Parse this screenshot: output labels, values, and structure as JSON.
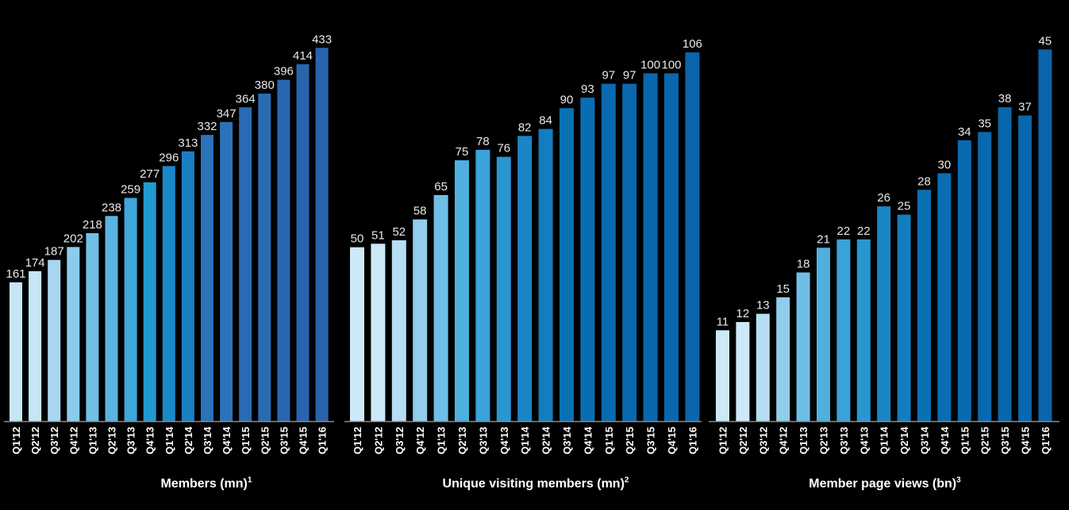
{
  "chart_data": [
    {
      "type": "bar",
      "title": "Members (mn)",
      "footnote": "1",
      "categories": [
        "Q1'12",
        "Q2'12",
        "Q3'12",
        "Q4'12",
        "Q1'13",
        "Q2'13",
        "Q3'13",
        "Q4'13",
        "Q1'14",
        "Q2'14",
        "Q3'14",
        "Q4'14",
        "Q1'15",
        "Q2'15",
        "Q3'15",
        "Q4'15",
        "Q1'16"
      ],
      "values": [
        161,
        174,
        187,
        202,
        218,
        238,
        259,
        277,
        296,
        313,
        332,
        347,
        364,
        380,
        396,
        414,
        433
      ],
      "ylim": [
        0,
        460
      ],
      "colors": [
        "#c6e6f6",
        "#c6e6f6",
        "#a9d7ef",
        "#8ccbeb",
        "#71bfe6",
        "#5ab4e0",
        "#3fa6da",
        "#2298d1",
        "#1a88c8",
        "#1a7fc2",
        "#2a72b9",
        "#2a72b9",
        "#2a6cb4",
        "#2a6ab3",
        "#2b66b0",
        "#2b64ae",
        "#2b62ad"
      ]
    },
    {
      "type": "bar",
      "title": "Unique visiting members (mn)",
      "footnote": "2",
      "categories": [
        "Q1'12",
        "Q2'12",
        "Q3'12",
        "Q4'12",
        "Q1'13",
        "Q2'13",
        "Q3'13",
        "Q4'13",
        "Q1'14",
        "Q2'14",
        "Q3'14",
        "Q4'14",
        "Q1'15",
        "Q2'15",
        "Q3'15",
        "Q4'15",
        "Q1'16"
      ],
      "values": [
        50,
        51,
        52,
        58,
        65,
        75,
        78,
        76,
        82,
        84,
        90,
        93,
        97,
        97,
        100,
        100,
        106
      ],
      "ylim": [
        0,
        114
      ],
      "colors": [
        "#cde9f7",
        "#cde9f7",
        "#b5def2",
        "#92cdeb",
        "#6fbee6",
        "#4fb0df",
        "#3aa3d9",
        "#2a96d0",
        "#1a86c6",
        "#137dbf",
        "#0a70b4",
        "#0a6db2",
        "#0a6ab0",
        "#0a68ae",
        "#0a66ad",
        "#0a66ad",
        "#0a65ac"
      ]
    },
    {
      "type": "bar",
      "title": "Member page views (bn)",
      "footnote": "3",
      "categories": [
        "Q1'12",
        "Q2'12",
        "Q3'12",
        "Q4'12",
        "Q1'13",
        "Q2'13",
        "Q3'13",
        "Q4'13",
        "Q1'14",
        "Q2'14",
        "Q3'14",
        "Q4'14",
        "Q1'15",
        "Q2'15",
        "Q3'15",
        "Q4'15",
        "Q1'16"
      ],
      "values": [
        11,
        12,
        13,
        15,
        18,
        21,
        22,
        22,
        26,
        25,
        28,
        30,
        34,
        35,
        38,
        37,
        45
      ],
      "ylim": [
        0,
        48
      ],
      "colors": [
        "#cde9f7",
        "#cde9f7",
        "#b5def2",
        "#92cdeb",
        "#6fbee6",
        "#4fb0df",
        "#3aa3d9",
        "#2a96d0",
        "#1a86c6",
        "#137dbf",
        "#0a70b4",
        "#0a6db2",
        "#0a6ab0",
        "#0a68ae",
        "#0a66ad",
        "#0a66ad",
        "#0a65ac"
      ]
    }
  ],
  "axis_color": "#8a8a8a",
  "background": "#000000"
}
